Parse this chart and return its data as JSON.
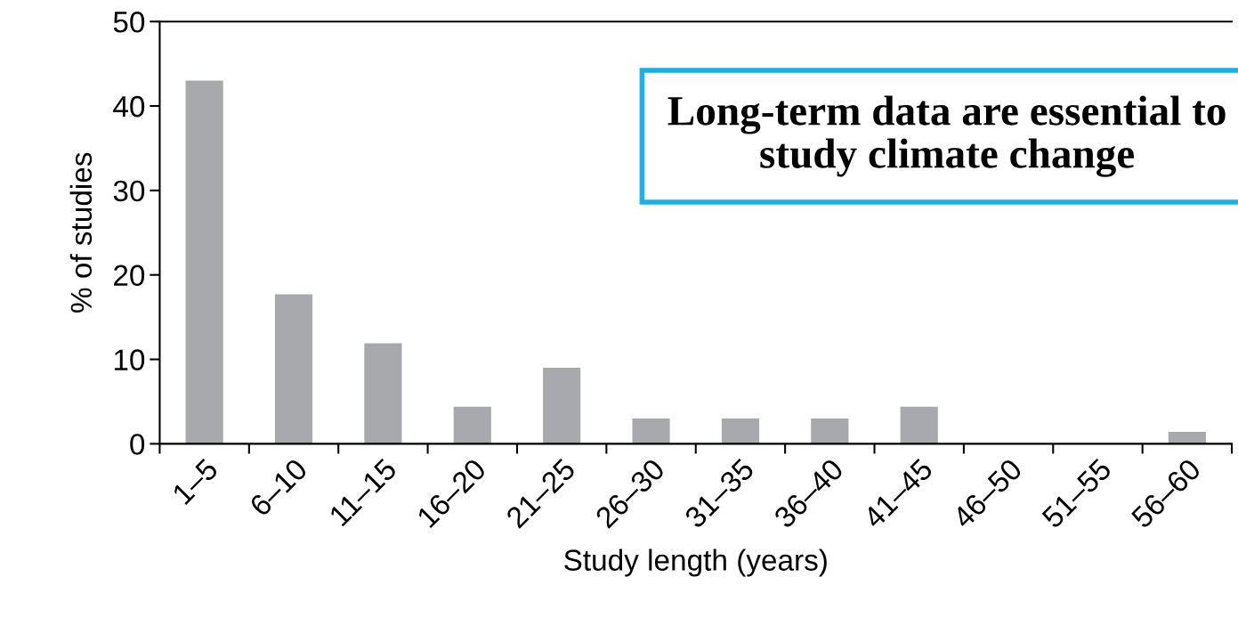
{
  "chart_data": {
    "type": "bar",
    "xlabel": "Study length (years)",
    "ylabel": "% of studies",
    "categories": [
      "1–5",
      "6–10",
      "11–15",
      "16–20",
      "21–25",
      "26–30",
      "31–35",
      "36–40",
      "41–45",
      "46–50",
      "51–55",
      "56–60"
    ],
    "values": [
      43,
      17.7,
      11.9,
      4.4,
      9.0,
      3.0,
      3.0,
      3.0,
      4.4,
      0,
      0,
      1.4
    ],
    "color": "#a7a9ac",
    "ylim": [
      0,
      50
    ],
    "yticks": [
      0,
      10,
      20,
      30,
      40,
      50
    ],
    "grid": false,
    "legend": false,
    "annotations": [
      "Long-term data are essential to study climate change"
    ]
  }
}
